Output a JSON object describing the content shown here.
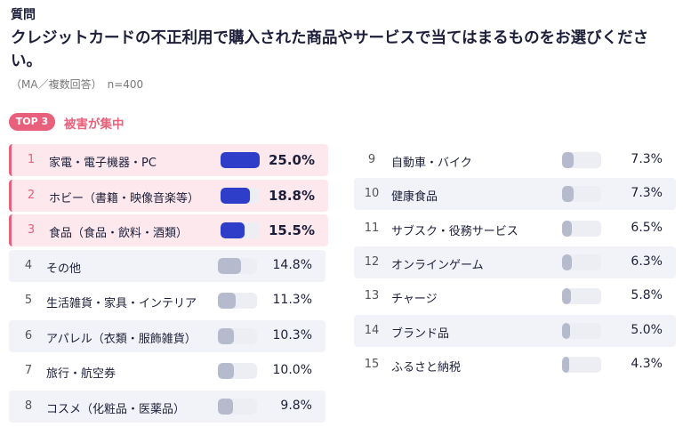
{
  "header": {
    "label": "質問",
    "question": "クレジットカードの不正利用で購入された商品やサービスで当てはまるものをお選びください。",
    "note": "（MA／複数回答）　n=400"
  },
  "chart_data": {
    "type": "bar",
    "badge": "TOP 3",
    "badge_caption": "被害が集中",
    "ranks": [
      1,
      2,
      3,
      4,
      5,
      6,
      7,
      8,
      9,
      10,
      11,
      12,
      13,
      14,
      15
    ],
    "categories": [
      "家電・電子機器・PC",
      "ホビー（書籍・映像音楽等）",
      "食品（食品・飲料・酒類）",
      "その他",
      "生活雑貨・家具・インテリア",
      "アパレル（衣類・服飾雑貨）",
      "旅行・航空券",
      "コスメ（化粧品・医薬品）",
      "自動車・バイク",
      "健康食品",
      "サブスク・役務サービス",
      "オンラインゲーム",
      "チャージ",
      "ブランド品",
      "ふるさと納税"
    ],
    "values": [
      25.0,
      18.8,
      15.5,
      14.8,
      11.3,
      10.3,
      10.0,
      9.8,
      7.3,
      7.3,
      6.5,
      6.3,
      5.8,
      5.0,
      4.3
    ],
    "value_labels": [
      "25.0%",
      "18.8%",
      "15.5%",
      "14.8%",
      "11.3%",
      "10.3%",
      "10.0%",
      "9.8%",
      "7.3%",
      "7.3%",
      "6.5%",
      "6.3%",
      "5.8%",
      "5.0%",
      "4.3%"
    ],
    "xlim": [
      0,
      25
    ],
    "highlight_color": "#2f3ec9",
    "bar_colors": [
      "#2f3ec9",
      "#2f3ec9",
      "#2f3ec9",
      "#b5bbcc",
      "#b5bbcc",
      "#b5bbcc",
      "#b5bbcc",
      "#b5bbcc",
      "#b5bbcc",
      "#b5bbcc",
      "#b5bbcc",
      "#b5bbcc",
      "#b5bbcc",
      "#b5bbcc",
      "#b5bbcc"
    ]
  }
}
